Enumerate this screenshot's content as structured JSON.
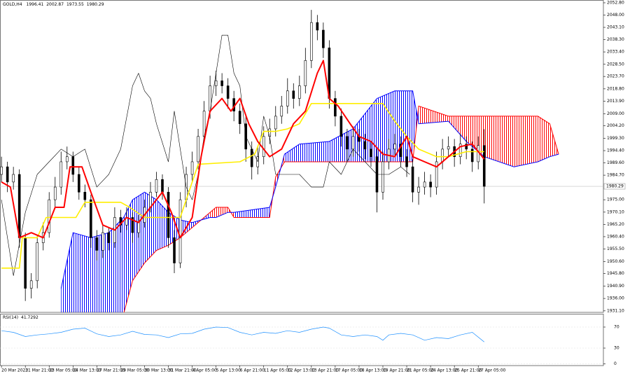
{
  "chart_data": [
    {
      "type": "candlestick",
      "symbol": "GOLD,H4",
      "xlim": [
        -0.5,
        202
      ],
      "ylim": [
        1930.5,
        2053.9
      ],
      "yticks": [
        {
          "value": 2052.8,
          "label": "2052.80"
        },
        {
          "value": 2048.0,
          "label": "2048.00"
        },
        {
          "value": 2043.1,
          "label": "2043.10"
        },
        {
          "value": 2038.3,
          "label": "2038.30"
        },
        {
          "value": 2033.4,
          "label": "2033.40"
        },
        {
          "value": 2028.5,
          "label": "2028.50"
        },
        {
          "value": 2023.7,
          "label": "2023.70"
        },
        {
          "value": 2018.8,
          "label": "2018.80"
        },
        {
          "value": 2013.9,
          "label": "2013.90"
        },
        {
          "value": 2009.0,
          "label": "2009.00"
        },
        {
          "value": 2004.2,
          "label": "2004.20"
        },
        {
          "value": 1999.3,
          "label": "1999.30"
        },
        {
          "value": 1994.4,
          "label": "1994.40"
        },
        {
          "value": 1989.6,
          "label": "1989.60"
        },
        {
          "value": 1984.7,
          "label": "1984.70"
        },
        {
          "value": 1975.0,
          "label": "1975.00"
        },
        {
          "value": 1970.1,
          "label": "1970.10"
        },
        {
          "value": 1965.2,
          "label": "1965.20"
        },
        {
          "value": 1960.4,
          "label": "1960.40"
        },
        {
          "value": 1955.5,
          "label": "1955.50"
        },
        {
          "value": 1950.6,
          "label": "1950.60"
        },
        {
          "value": 1945.8,
          "label": "1945.80"
        },
        {
          "value": 1940.9,
          "label": "1940.90"
        },
        {
          "value": 1936.0,
          "label": "1936.00"
        },
        {
          "value": 1931.1,
          "label": "1931.10"
        }
      ],
      "x": [
        0,
        2,
        4,
        6,
        8,
        10,
        12,
        14,
        16,
        18,
        20,
        22,
        24,
        26,
        28,
        30,
        32,
        34,
        36,
        38,
        40,
        42,
        44,
        46,
        48,
        50,
        52,
        54,
        56,
        58,
        60,
        62,
        64,
        66,
        68,
        70,
        72,
        74,
        76,
        78,
        80,
        82,
        84,
        86,
        88,
        90,
        92,
        94,
        96,
        98,
        100,
        102,
        104,
        106,
        108,
        110,
        112,
        114,
        116,
        118,
        120,
        122,
        124,
        126,
        128,
        130,
        132,
        134,
        136,
        138,
        140,
        142,
        144,
        146,
        148,
        150,
        152,
        154,
        156,
        158,
        160,
        162
      ],
      "ohlc": [
        [
          1985,
          1992,
          1982,
          1988
        ],
        [
          1988,
          1990,
          1978,
          1982
        ],
        [
          1982,
          1988,
          1979,
          1985
        ],
        [
          1985,
          1987,
          1956,
          1960
        ],
        [
          1960,
          1962,
          1935,
          1940
        ],
        [
          1940,
          1946,
          1936,
          1943
        ],
        [
          1943,
          1961,
          1940,
          1958
        ],
        [
          1958,
          1966,
          1955,
          1962
        ],
        [
          1962,
          1978,
          1960,
          1975
        ],
        [
          1975,
          1984,
          1972,
          1980
        ],
        [
          1980,
          1994,
          1977,
          1990
        ],
        [
          1990,
          1996,
          1987,
          1992
        ],
        [
          1992,
          1994,
          1982,
          1985
        ],
        [
          1985,
          1988,
          1975,
          1978
        ],
        [
          1978,
          1981,
          1972,
          1975
        ],
        [
          1975,
          1977,
          1956,
          1960
        ],
        [
          1960,
          1963,
          1951,
          1955
        ],
        [
          1955,
          1965,
          1952,
          1962
        ],
        [
          1962,
          1964,
          1955,
          1958
        ],
        [
          1958,
          1972,
          1956,
          1968
        ],
        [
          1968,
          1971,
          1962,
          1965
        ],
        [
          1965,
          1972,
          1963,
          1968
        ],
        [
          1968,
          1970,
          1958,
          1962
        ],
        [
          1962,
          1969,
          1960,
          1966
        ],
        [
          1966,
          1975,
          1964,
          1972
        ],
        [
          1972,
          1982,
          1970,
          1978
        ],
        [
          1978,
          1986,
          1976,
          1983
        ],
        [
          1983,
          1985,
          1975,
          1978
        ],
        [
          1978,
          1980,
          1956,
          1960
        ],
        [
          1960,
          1963,
          1946,
          1950
        ],
        [
          1950,
          1978,
          1948,
          1975
        ],
        [
          1975,
          1988,
          1972,
          1985
        ],
        [
          1985,
          1994,
          1982,
          1990
        ],
        [
          1990,
          2003,
          1987,
          2000
        ],
        [
          2000,
          2014,
          1997,
          2010
        ],
        [
          2010,
          2024,
          2007,
          2020
        ],
        [
          2020,
          2026,
          2016,
          2022
        ],
        [
          2022,
          2025,
          2017,
          2020
        ],
        [
          2020,
          2023,
          2011,
          2015
        ],
        [
          2015,
          2018,
          2006,
          2010
        ],
        [
          2010,
          2013,
          2001,
          2005
        ],
        [
          2005,
          2008,
          1990,
          1995
        ],
        [
          1995,
          1998,
          1983,
          1988
        ],
        [
          1988,
          1996,
          1985,
          1992
        ],
        [
          1992,
          2004,
          1989,
          2000
        ],
        [
          2000,
          2007,
          1997,
          2003
        ],
        [
          2003,
          2012,
          2000,
          2008
        ],
        [
          2008,
          2016,
          2005,
          2012
        ],
        [
          2012,
          2023,
          2009,
          2018
        ],
        [
          2018,
          2021,
          2011,
          2015
        ],
        [
          2015,
          2024,
          2012,
          2020
        ],
        [
          2020,
          2035,
          2017,
          2030
        ],
        [
          2030,
          2050,
          2027,
          2045
        ],
        [
          2045,
          2048,
          2038,
          2042
        ],
        [
          2042,
          2045,
          2031,
          2035
        ],
        [
          2035,
          2038,
          2011,
          2015
        ],
        [
          2015,
          2018,
          2004,
          2008
        ],
        [
          2008,
          2011,
          1996,
          2000
        ],
        [
          2000,
          2003,
          1990,
          1995
        ],
        [
          1995,
          2004,
          1992,
          2000
        ],
        [
          2000,
          2003,
          1994,
          1998
        ],
        [
          1998,
          2001,
          1991,
          1995
        ],
        [
          1995,
          1998,
          1988,
          1992
        ],
        [
          1992,
          1995,
          1970,
          1978
        ],
        [
          1978,
          1994,
          1975,
          1990
        ],
        [
          1990,
          1999,
          1987,
          1995
        ],
        [
          1995,
          2001,
          1992,
          1997
        ],
        [
          1997,
          2000,
          1988,
          1992
        ],
        [
          1992,
          1995,
          1984,
          1988
        ],
        [
          1988,
          1991,
          1974,
          1978
        ],
        [
          1978,
          1984,
          1973,
          1980
        ],
        [
          1980,
          1986,
          1977,
          1982
        ],
        [
          1982,
          1985,
          1976,
          1980
        ],
        [
          1980,
          1994,
          1977,
          1990
        ],
        [
          1990,
          1999,
          1987,
          1995
        ],
        [
          1995,
          2000,
          1992,
          1996
        ],
        [
          1996,
          1999,
          1988,
          1992
        ],
        [
          1992,
          2001,
          1989,
          1997
        ],
        [
          1997,
          2000,
          1991,
          1995
        ],
        [
          1995,
          1998,
          1986,
          1990
        ],
        [
          1990,
          2000,
          1987,
          1996.41
        ],
        [
          1996.41,
          2002.87,
          1973.55,
          1980.29
        ]
      ],
      "cloud": {
        "bull_color": "#0000ff",
        "bear_color": "#ff0000",
        "x": [
          20,
          24,
          30,
          36,
          41,
          44,
          48,
          52,
          56,
          60,
          64,
          70,
          72,
          76,
          78,
          90,
          92,
          95,
          100,
          110,
          118,
          126,
          132,
          138,
          140,
          150,
          156,
          162,
          172,
          180,
          184,
          187
        ],
        "span_a": [
          1940,
          1962,
          1960,
          1962,
          1968,
          1975,
          1978,
          1975,
          1970,
          1967,
          1966,
          1968,
          1968,
          1970,
          1970,
          1972,
          1980,
          1993,
          1997,
          1998,
          2003,
          2015,
          2018,
          2018,
          2005,
          2006,
          1998,
          1992,
          1988,
          1990,
          1992,
          1993
        ],
        "span_b": [
          1920,
          1920,
          1920,
          1922,
          1930,
          1943,
          1950,
          1955,
          1957,
          1960,
          1964,
          1970,
          1972,
          1972,
          1968,
          1968,
          1984,
          1990,
          1990,
          1990,
          1990,
          1990,
          1990,
          1990,
          2012,
          2008,
          2008,
          2008,
          2008,
          2008,
          2005,
          1993
        ]
      },
      "series": [
        {
          "color": "#000000",
          "width": 0.6,
          "x": [
            0,
            4,
            8,
            12,
            16,
            20,
            24,
            28,
            32,
            36,
            40,
            44,
            46,
            48,
            50,
            52,
            56,
            58,
            60,
            62,
            64,
            66,
            68,
            70,
            74,
            76,
            78,
            80,
            82,
            84,
            86,
            88,
            90,
            92,
            96,
            100,
            104,
            108,
            110,
            114,
            118,
            122,
            126,
            130,
            134,
            137
          ],
          "values": [
            1975,
            1945,
            1970,
            1985,
            1990,
            1995,
            1992,
            1995,
            1980,
            1985,
            1995,
            2020,
            2025,
            2018,
            2015,
            2005,
            1990,
            2010,
            1995,
            1980,
            1975,
            1985,
            2000,
            2010,
            2040,
            2040,
            2025,
            2020,
            2000,
            1995,
            1990,
            2008,
            2000,
            1985,
            1985,
            1985,
            1980,
            1980,
            1990,
            1985,
            1995,
            1990,
            1985,
            1985,
            1988,
            1985
          ]
        },
        {
          "color": "#ffee00",
          "width": 1.6,
          "x": [
            0,
            6,
            7,
            12,
            15,
            25,
            28,
            40,
            43,
            48,
            57,
            60,
            66,
            80,
            85,
            88,
            92,
            96,
            100,
            104,
            112,
            118,
            128,
            132,
            136,
            140,
            146,
            150,
            156,
            162
          ],
          "values": [
            1948,
            1948,
            1960,
            1960,
            1968,
            1968,
            1974,
            1974,
            1972,
            1968,
            1968,
            1968,
            1989,
            1990,
            1993,
            2002,
            2002,
            2003,
            2005,
            2013,
            2013,
            2013,
            2013,
            2006,
            2000,
            1995,
            1992,
            1992,
            1994,
            1994
          ]
        },
        {
          "color": "#ff0000",
          "width": 2,
          "x": [
            0,
            3,
            6,
            10,
            14,
            18,
            21,
            23,
            27,
            30,
            34,
            38,
            42,
            46,
            50,
            54,
            57,
            60,
            64,
            67,
            70,
            74,
            77,
            80,
            83,
            86,
            90,
            94,
            98,
            102,
            106,
            108,
            110,
            113,
            117,
            120,
            124,
            128,
            132,
            136,
            138,
            142,
            146,
            150,
            154,
            158,
            162
          ],
          "values": [
            1982,
            1980,
            1960,
            1962,
            1960,
            1972,
            1972,
            1988,
            1988,
            1978,
            1965,
            1963,
            1968,
            1966,
            1972,
            1978,
            1970,
            1960,
            1968,
            1992,
            2010,
            2015,
            2010,
            2015,
            2005,
            1998,
            1992,
            1995,
            2005,
            2010,
            2025,
            2030,
            2015,
            2012,
            2005,
            2000,
            1998,
            1993,
            1992,
            2000,
            1992,
            1990,
            1988,
            1992,
            1996,
            1997,
            1991
          ]
        }
      ]
    },
    {
      "type": "line",
      "indicator": "RSI(14)",
      "color": "#1e90ff",
      "xlim": [
        -0.5,
        202
      ],
      "ylim": [
        -3.3,
        95.3
      ],
      "yticks": [
        70,
        30,
        0
      ],
      "x": [
        0,
        4,
        8,
        12,
        16,
        20,
        24,
        28,
        32,
        36,
        40,
        44,
        48,
        52,
        56,
        60,
        64,
        68,
        72,
        76,
        80,
        84,
        88,
        92,
        96,
        100,
        104,
        108,
        110,
        114,
        118,
        122,
        126,
        128,
        130,
        134,
        138,
        142,
        146,
        150,
        154,
        158,
        162
      ],
      "values": [
        63,
        60,
        52,
        55,
        57,
        60,
        66,
        68,
        57,
        52,
        55,
        62,
        56,
        55,
        50,
        57,
        58,
        66,
        70,
        69,
        60,
        55,
        60,
        58,
        63,
        60,
        66,
        70,
        68,
        55,
        52,
        55,
        52,
        45,
        55,
        58,
        55,
        45,
        50,
        48,
        55,
        60,
        41.7292
      ],
      "xticks": [
        {
          "value": 0,
          "label": "20 Mar 2023"
        },
        {
          "value": 8,
          "label": "21 Mar 21:00"
        },
        {
          "value": 16,
          "label": "23 Mar 05:00"
        },
        {
          "value": 24,
          "label": "24 Mar 13:00"
        },
        {
          "value": 32,
          "label": "27 Mar 21:00"
        },
        {
          "value": 40,
          "label": "29 Mar 05:00"
        },
        {
          "value": 48,
          "label": "30 Mar 13:00"
        },
        {
          "value": 56,
          "label": "31 Mar 21:00"
        },
        {
          "value": 64,
          "label": "4 Apr 05:00"
        },
        {
          "value": 72,
          "label": "5 Apr 13:00"
        },
        {
          "value": 80,
          "label": "6 Apr 21:00"
        },
        {
          "value": 88,
          "label": "11 Apr 05:00"
        },
        {
          "value": 96,
          "label": "12 Apr 13:00"
        },
        {
          "value": 104,
          "label": "13 Apr 21:00"
        },
        {
          "value": 112,
          "label": "17 Apr 05:00"
        },
        {
          "value": 120,
          "label": "18 Apr 13:00"
        },
        {
          "value": 128,
          "label": "19 Apr 21:00"
        },
        {
          "value": 136,
          "label": "21 Apr 05:00"
        },
        {
          "value": 144,
          "label": "24 Apr 13:00"
        },
        {
          "value": 152,
          "label": "25 Apr 21:00"
        },
        {
          "value": 160,
          "label": "27 Apr 05:00"
        }
      ]
    }
  ]
}
